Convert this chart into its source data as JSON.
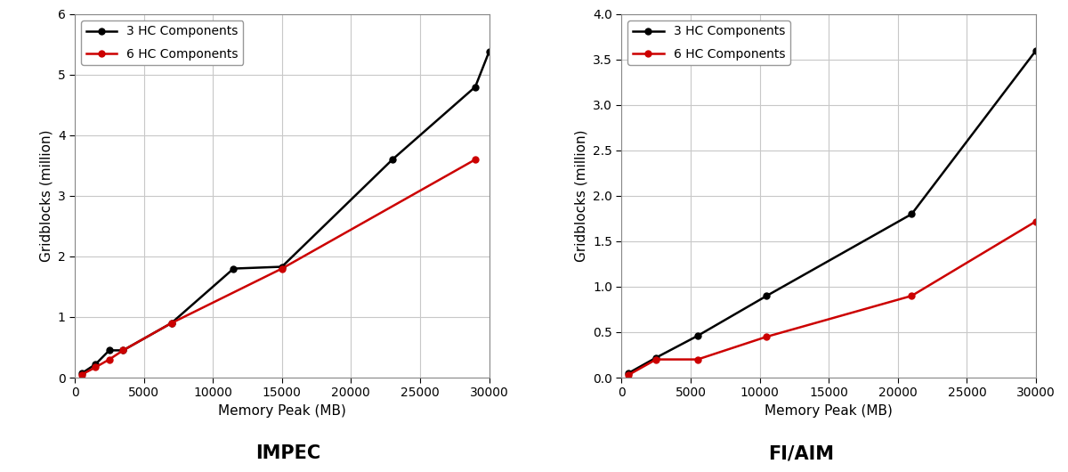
{
  "impec": {
    "title": "IMPEC",
    "xlabel": "Memory Peak (MB)",
    "ylabel": "Gridblocks (million)",
    "series_3hc": {
      "label": "3 HC Components",
      "color": "#000000",
      "x": [
        500,
        1500,
        2500,
        3500,
        7000,
        11500,
        15000,
        23000,
        29000,
        30000
      ],
      "y": [
        0.07,
        0.22,
        0.45,
        0.45,
        0.9,
        1.8,
        1.83,
        3.6,
        4.8,
        5.38
      ]
    },
    "series_6hc": {
      "label": "6 HC Components",
      "color": "#cc0000",
      "x": [
        500,
        1500,
        2500,
        3500,
        7000,
        15000,
        29000
      ],
      "y": [
        0.05,
        0.17,
        0.3,
        0.45,
        0.9,
        1.8,
        3.6
      ]
    },
    "xlim": [
      0,
      30000
    ],
    "ylim": [
      0,
      6
    ],
    "xticks": [
      0,
      5000,
      10000,
      15000,
      20000,
      25000,
      30000
    ],
    "yticks": [
      0,
      1,
      2,
      3,
      4,
      5,
      6
    ]
  },
  "fiaim": {
    "title": "FI/AIM",
    "xlabel": "Memory Peak (MB)",
    "ylabel": "Gridblocks (million)",
    "series_3hc": {
      "label": "3 HC Components",
      "color": "#000000",
      "x": [
        500,
        2500,
        5500,
        10500,
        21000,
        30000
      ],
      "y": [
        0.05,
        0.22,
        0.46,
        0.9,
        1.8,
        3.6
      ]
    },
    "series_6hc": {
      "label": "6 HC Components",
      "color": "#cc0000",
      "x": [
        500,
        2500,
        5500,
        10500,
        21000,
        30000
      ],
      "y": [
        0.03,
        0.2,
        0.2,
        0.45,
        0.9,
        1.72
      ]
    },
    "xlim": [
      0,
      30000
    ],
    "ylim": [
      0,
      4
    ],
    "xticks": [
      0,
      5000,
      10000,
      15000,
      20000,
      25000,
      30000
    ],
    "yticks": [
      0,
      0.5,
      1.0,
      1.5,
      2.0,
      2.5,
      3.0,
      3.5,
      4.0
    ]
  },
  "bg_color": "#ffffff",
  "grid_color": "#c8c8c8",
  "marker": "o",
  "markersize": 5,
  "linewidth": 1.8,
  "title_fontsize": 15,
  "label_fontsize": 11,
  "tick_fontsize": 10,
  "legend_fontsize": 10
}
